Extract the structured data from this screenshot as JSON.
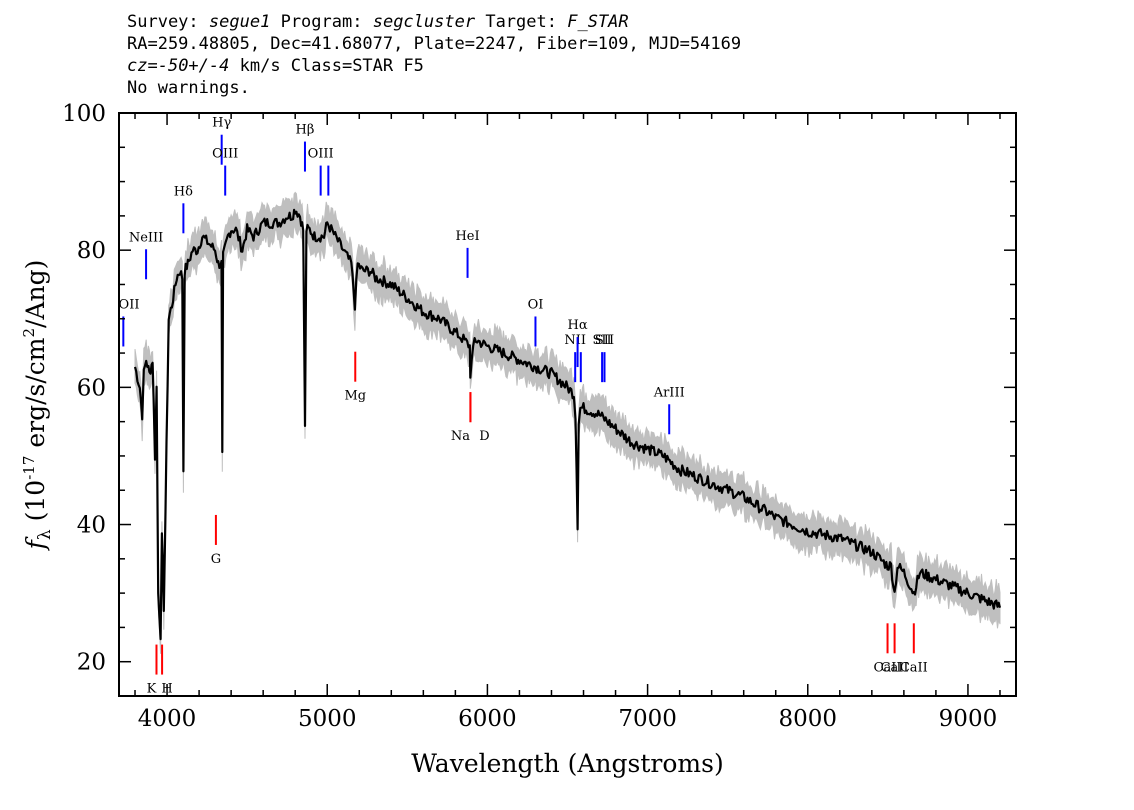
{
  "header": {
    "survey_label": "Survey:",
    "survey": "segue1",
    "program_label": "Program:",
    "program": "segcluster",
    "target_label": "Target:",
    "target": "F_STAR",
    "line2": "RA=259.48805, Dec=41.68077, Plate=2247, Fiber=109, MJD=54169",
    "cz_label": "cz=",
    "cz_value": "-50+/-4",
    "cz_unit": " km/s Class=STAR F5",
    "warnings": "No warnings."
  },
  "colors": {
    "emission": "#0000ff",
    "absorption": "#ff0000",
    "flux": "#000000",
    "error": "#bfbfbf"
  },
  "chart_data": {
    "type": "line",
    "xlabel": "Wavelength (Angstroms)",
    "ylabel": "f_λ (10^-17 erg/s/cm^2/Ang)",
    "xlim": [
      3700,
      9300
    ],
    "ylim": [
      15,
      100
    ],
    "x_ticks": [
      4000,
      5000,
      6000,
      7000,
      8000,
      9000
    ],
    "y_ticks": [
      20,
      40,
      60,
      80,
      100
    ],
    "series": [
      {
        "x": [
          3800,
          3830,
          3845,
          3855,
          3870,
          3890,
          3910,
          3925,
          3935,
          3945,
          3960,
          3968,
          3980,
          3990,
          4010,
          4030,
          4060,
          4080,
          4095,
          4102,
          4110,
          4130,
          4160,
          4190,
          4220,
          4260,
          4300,
          4320,
          4340,
          4345,
          4350,
          4360,
          4380,
          4400,
          4430,
          4470,
          4500,
          4540,
          4600,
          4650,
          4700,
          4750,
          4780,
          4800,
          4830,
          4850,
          4861,
          4870,
          4890,
          4920,
          4950,
          4980,
          5000,
          5050,
          5100,
          5150,
          5173,
          5190,
          5220,
          5270,
          5300,
          5400,
          5500,
          5600,
          5700,
          5800,
          5850,
          5890,
          5893,
          5920,
          6000,
          6100,
          6200,
          6300,
          6400,
          6500,
          6540,
          6550,
          6563,
          6570,
          6580,
          6600,
          6700,
          6800,
          6900,
          7000,
          7100,
          7200,
          7400,
          7600,
          7800,
          8000,
          8200,
          8400,
          8450,
          8498,
          8520,
          8542,
          8560,
          8600,
          8662,
          8700,
          8800,
          9000,
          9100,
          9200
        ],
        "y": [
          63,
          60,
          56,
          62,
          64,
          62,
          64,
          50,
          60,
          30,
          24,
          38,
          28,
          42,
          70,
          72,
          76,
          77,
          76,
          48,
          77,
          78,
          80,
          80,
          82,
          81,
          80,
          78,
          78,
          50,
          79,
          80,
          82,
          83,
          83,
          80,
          83,
          82,
          84,
          84,
          84,
          85,
          85,
          86,
          85,
          83,
          54,
          83,
          83,
          82,
          82,
          82,
          84,
          82,
          80,
          78,
          72,
          78,
          77,
          77,
          76,
          75,
          73,
          71,
          70,
          68,
          67,
          66,
          62,
          67,
          66,
          65,
          64,
          63,
          62,
          60,
          59,
          56,
          40,
          55,
          57,
          57,
          56,
          54,
          52,
          51,
          50,
          48,
          46,
          44,
          41,
          39,
          38,
          36,
          35,
          34,
          34,
          30,
          34,
          33,
          30,
          33,
          32,
          30,
          29,
          28
        ]
      }
    ],
    "annotations": [
      {
        "label": "OII",
        "x": 3727,
        "kind": "emission",
        "label_y": 71.5
      },
      {
        "label": "NeIII",
        "x": 3869,
        "kind": "emission",
        "label_y": 81.3
      },
      {
        "label": "Hδ",
        "x": 4102,
        "kind": "emission",
        "label_y": 88
      },
      {
        "label": "Hγ",
        "x": 4341,
        "kind": "emission",
        "label_y": 98
      },
      {
        "label": "OIII",
        "x": 4363,
        "kind": "emission",
        "label_y": 93.5
      },
      {
        "label": "Hβ",
        "x": 4861,
        "kind": "emission",
        "label_y": 97
      },
      {
        "label": "OIII",
        "x": 4959,
        "kind": "emission",
        "label_y": 93.5
      },
      {
        "label": "OIII",
        "x": 5007,
        "kind": "emission",
        "label_y": 93.5
      },
      {
        "label": "HeI",
        "x": 5876,
        "kind": "emission",
        "label_y": 81.5
      },
      {
        "label": "OI",
        "x": 6300,
        "kind": "emission",
        "label_y": 71.5
      },
      {
        "label": "NII",
        "x": 6548,
        "kind": "emission",
        "label_y": 66.3
      },
      {
        "label": "Hα",
        "x": 6563,
        "kind": "emission",
        "label_y": 68.5
      },
      {
        "label": "NII",
        "x": 6583,
        "kind": "emission",
        "label_y": 66.3
      },
      {
        "label": "SII",
        "x": 6716,
        "kind": "emission",
        "label_y": 66.3
      },
      {
        "label": "SII",
        "x": 6731,
        "kind": "emission",
        "label_y": 66.3
      },
      {
        "label": "ArIII",
        "x": 7135,
        "kind": "emission",
        "label_y": 58.7
      },
      {
        "label": "K",
        "x": 3934,
        "kind": "absorption",
        "label_y": 15.5
      },
      {
        "label": "H",
        "x": 3969,
        "kind": "absorption",
        "label_y": 15.5
      },
      {
        "label": "G",
        "x": 4305,
        "kind": "absorption",
        "label_y": 34.4
      },
      {
        "label": "Mg",
        "x": 5175,
        "kind": "absorption",
        "label_y": 58.2
      },
      {
        "label": "Na",
        "x": 5894,
        "kind": "absorption",
        "label_y": 52.3
      },
      {
        "label": "D",
        "x": 5894,
        "kind": "absorption",
        "label_y": 52.3
      },
      {
        "label": "CaII",
        "x": 8498,
        "kind": "absorption",
        "label_y": 18.6
      },
      {
        "label": "CaII",
        "x": 8542,
        "kind": "absorption",
        "label_y": 18.6
      },
      {
        "label": "CaII",
        "x": 8662,
        "kind": "absorption",
        "label_y": 18.6
      }
    ]
  }
}
